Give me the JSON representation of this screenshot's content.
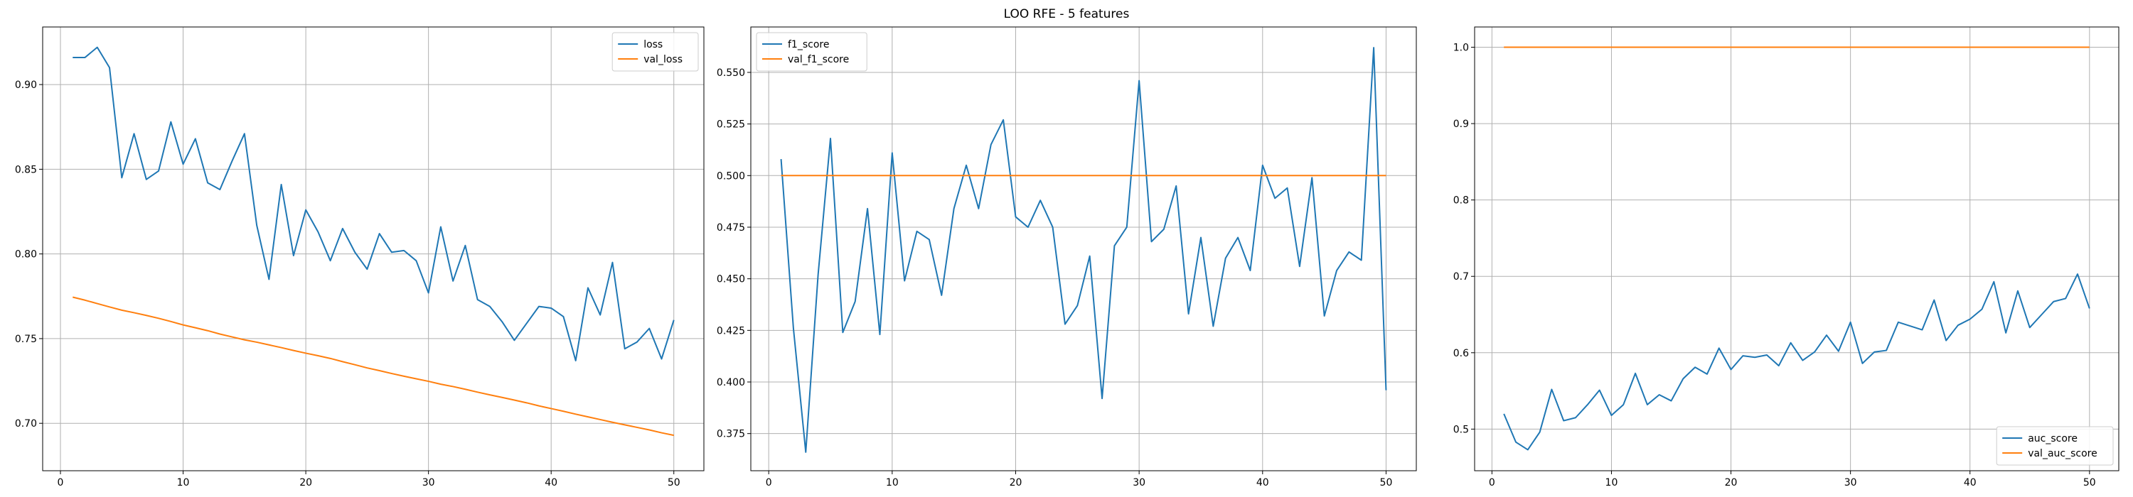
{
  "figure": {
    "title": "LOO RFE - 5 features"
  },
  "colors": {
    "blue": "#1f77b4",
    "orange": "#ff7f0e",
    "grid": "#b0b0b0"
  },
  "chart_data": [
    {
      "type": "line",
      "title": "",
      "xlabel": "",
      "ylabel": "",
      "xlim": [
        -1.45,
        52.45
      ],
      "ylim": [
        0.672,
        0.934
      ],
      "xticks": [
        0,
        10,
        20,
        30,
        40,
        50
      ],
      "yticks": [
        0.7,
        0.75,
        0.8,
        0.85,
        0.9
      ],
      "ytick_labels": [
        "0.70",
        "0.75",
        "0.80",
        "0.85",
        "0.90"
      ],
      "grid": true,
      "legend_position": "upper-right",
      "x": [
        1,
        2,
        3,
        4,
        5,
        6,
        7,
        8,
        9,
        10,
        11,
        12,
        13,
        14,
        15,
        16,
        17,
        18,
        19,
        20,
        21,
        22,
        23,
        24,
        25,
        26,
        27,
        28,
        29,
        30,
        31,
        32,
        33,
        34,
        35,
        36,
        37,
        38,
        39,
        40,
        41,
        42,
        43,
        44,
        45,
        46,
        47,
        48,
        49,
        50
      ],
      "series": [
        {
          "name": "loss",
          "color": "#1f77b4",
          "values": [
            0.916,
            0.916,
            0.922,
            0.91,
            0.845,
            0.871,
            0.844,
            0.849,
            0.878,
            0.853,
            0.868,
            0.842,
            0.838,
            0.855,
            0.871,
            0.817,
            0.785,
            0.841,
            0.799,
            0.826,
            0.813,
            0.796,
            0.815,
            0.801,
            0.791,
            0.812,
            0.801,
            0.802,
            0.796,
            0.777,
            0.816,
            0.784,
            0.805,
            0.773,
            0.769,
            0.76,
            0.749,
            0.759,
            0.769,
            0.768,
            0.763,
            0.737,
            0.78,
            0.764,
            0.795,
            0.744,
            0.748,
            0.756,
            0.738,
            0.761
          ]
        },
        {
          "name": "val_loss",
          "color": "#ff7f0e",
          "values": [
            0.7745,
            0.7727,
            0.7707,
            0.7687,
            0.7668,
            0.7653,
            0.7637,
            0.762,
            0.7601,
            0.7581,
            0.7564,
            0.7547,
            0.7527,
            0.751,
            0.7493,
            0.7479,
            0.7463,
            0.7447,
            0.743,
            0.7414,
            0.7399,
            0.7383,
            0.7364,
            0.7346,
            0.7327,
            0.7311,
            0.7294,
            0.7278,
            0.7263,
            0.7248,
            0.7231,
            0.7217,
            0.7201,
            0.7184,
            0.7168,
            0.7153,
            0.7137,
            0.7121,
            0.7103,
            0.7087,
            0.7071,
            0.7054,
            0.7038,
            0.7022,
            0.7006,
            0.6991,
            0.6976,
            0.6961,
            0.6944,
            0.6929
          ]
        }
      ]
    },
    {
      "type": "line",
      "title": "",
      "xlabel": "",
      "ylabel": "",
      "xlim": [
        -1.45,
        52.45
      ],
      "ylim": [
        0.357,
        0.572
      ],
      "xticks": [
        0,
        10,
        20,
        30,
        40,
        50
      ],
      "yticks": [
        0.375,
        0.4,
        0.425,
        0.45,
        0.475,
        0.5,
        0.525,
        0.55
      ],
      "ytick_labels": [
        "0.375",
        "0.400",
        "0.425",
        "0.450",
        "0.475",
        "0.500",
        "0.525",
        "0.550"
      ],
      "grid": true,
      "legend_position": "upper-left",
      "x": [
        1,
        2,
        3,
        4,
        5,
        6,
        7,
        8,
        9,
        10,
        11,
        12,
        13,
        14,
        15,
        16,
        17,
        18,
        19,
        20,
        21,
        22,
        23,
        24,
        25,
        26,
        27,
        28,
        29,
        30,
        31,
        32,
        33,
        34,
        35,
        36,
        37,
        38,
        39,
        40,
        41,
        42,
        43,
        44,
        45,
        46,
        47,
        48,
        49,
        50
      ],
      "series": [
        {
          "name": "f1_score",
          "color": "#1f77b4",
          "values": [
            0.508,
            0.426,
            0.366,
            0.452,
            0.518,
            0.424,
            0.439,
            0.484,
            0.423,
            0.511,
            0.449,
            0.473,
            0.469,
            0.442,
            0.484,
            0.505,
            0.484,
            0.515,
            0.527,
            0.48,
            0.475,
            0.488,
            0.475,
            0.428,
            0.437,
            0.461,
            0.392,
            0.466,
            0.475,
            0.546,
            0.468,
            0.474,
            0.495,
            0.433,
            0.47,
            0.427,
            0.46,
            0.47,
            0.454,
            0.505,
            0.489,
            0.494,
            0.456,
            0.499,
            0.432,
            0.454,
            0.463,
            0.459,
            0.562,
            0.396
          ]
        },
        {
          "name": "val_f1_score",
          "color": "#ff7f0e",
          "values": [
            0.5,
            0.5,
            0.5,
            0.5,
            0.5,
            0.5,
            0.5,
            0.5,
            0.5,
            0.5,
            0.5,
            0.5,
            0.5,
            0.5,
            0.5,
            0.5,
            0.5,
            0.5,
            0.5,
            0.5,
            0.5,
            0.5,
            0.5,
            0.5,
            0.5,
            0.5,
            0.5,
            0.5,
            0.5,
            0.5,
            0.5,
            0.5,
            0.5,
            0.5,
            0.5,
            0.5,
            0.5,
            0.5,
            0.5,
            0.5,
            0.5,
            0.5,
            0.5,
            0.5,
            0.5,
            0.5,
            0.5,
            0.5,
            0.5,
            0.5
          ]
        }
      ]
    },
    {
      "type": "line",
      "title": "",
      "xlabel": "",
      "ylabel": "",
      "xlim": [
        -1.45,
        52.45
      ],
      "ylim": [
        0.4455,
        1.0265
      ],
      "xticks": [
        0,
        10,
        20,
        30,
        40,
        50
      ],
      "yticks": [
        0.5,
        0.6,
        0.7,
        0.8,
        0.9,
        1.0
      ],
      "ytick_labels": [
        "0.5",
        "0.6",
        "0.7",
        "0.8",
        "0.9",
        "1.0"
      ],
      "grid": true,
      "legend_position": "lower-right",
      "x": [
        1,
        2,
        3,
        4,
        5,
        6,
        7,
        8,
        9,
        10,
        11,
        12,
        13,
        14,
        15,
        16,
        17,
        18,
        19,
        20,
        21,
        22,
        23,
        24,
        25,
        26,
        27,
        28,
        29,
        30,
        31,
        32,
        33,
        34,
        35,
        36,
        37,
        38,
        39,
        40,
        41,
        42,
        43,
        44,
        45,
        46,
        47,
        48,
        49,
        50
      ],
      "series": [
        {
          "name": "auc_score",
          "color": "#1f77b4",
          "values": [
            0.52,
            0.483,
            0.473,
            0.496,
            0.552,
            0.511,
            0.515,
            0.532,
            0.551,
            0.518,
            0.532,
            0.573,
            0.532,
            0.545,
            0.537,
            0.566,
            0.581,
            0.572,
            0.606,
            0.578,
            0.596,
            0.594,
            0.597,
            0.583,
            0.613,
            0.59,
            0.601,
            0.623,
            0.602,
            0.64,
            0.586,
            0.601,
            0.603,
            0.64,
            0.635,
            0.63,
            0.669,
            0.616,
            0.636,
            0.644,
            0.657,
            0.693,
            0.626,
            0.681,
            0.633,
            0.65,
            0.667,
            0.671,
            0.703,
            0.658
          ]
        },
        {
          "name": "val_auc_score",
          "color": "#ff7f0e",
          "values": [
            1.0,
            1.0,
            1.0,
            1.0,
            1.0,
            1.0,
            1.0,
            1.0,
            1.0,
            1.0,
            1.0,
            1.0,
            1.0,
            1.0,
            1.0,
            1.0,
            1.0,
            1.0,
            1.0,
            1.0,
            1.0,
            1.0,
            1.0,
            1.0,
            1.0,
            1.0,
            1.0,
            1.0,
            1.0,
            1.0,
            1.0,
            1.0,
            1.0,
            1.0,
            1.0,
            1.0,
            1.0,
            1.0,
            1.0,
            1.0,
            1.0,
            1.0,
            1.0,
            1.0,
            1.0,
            1.0,
            1.0,
            1.0,
            1.0,
            1.0
          ]
        }
      ]
    }
  ]
}
